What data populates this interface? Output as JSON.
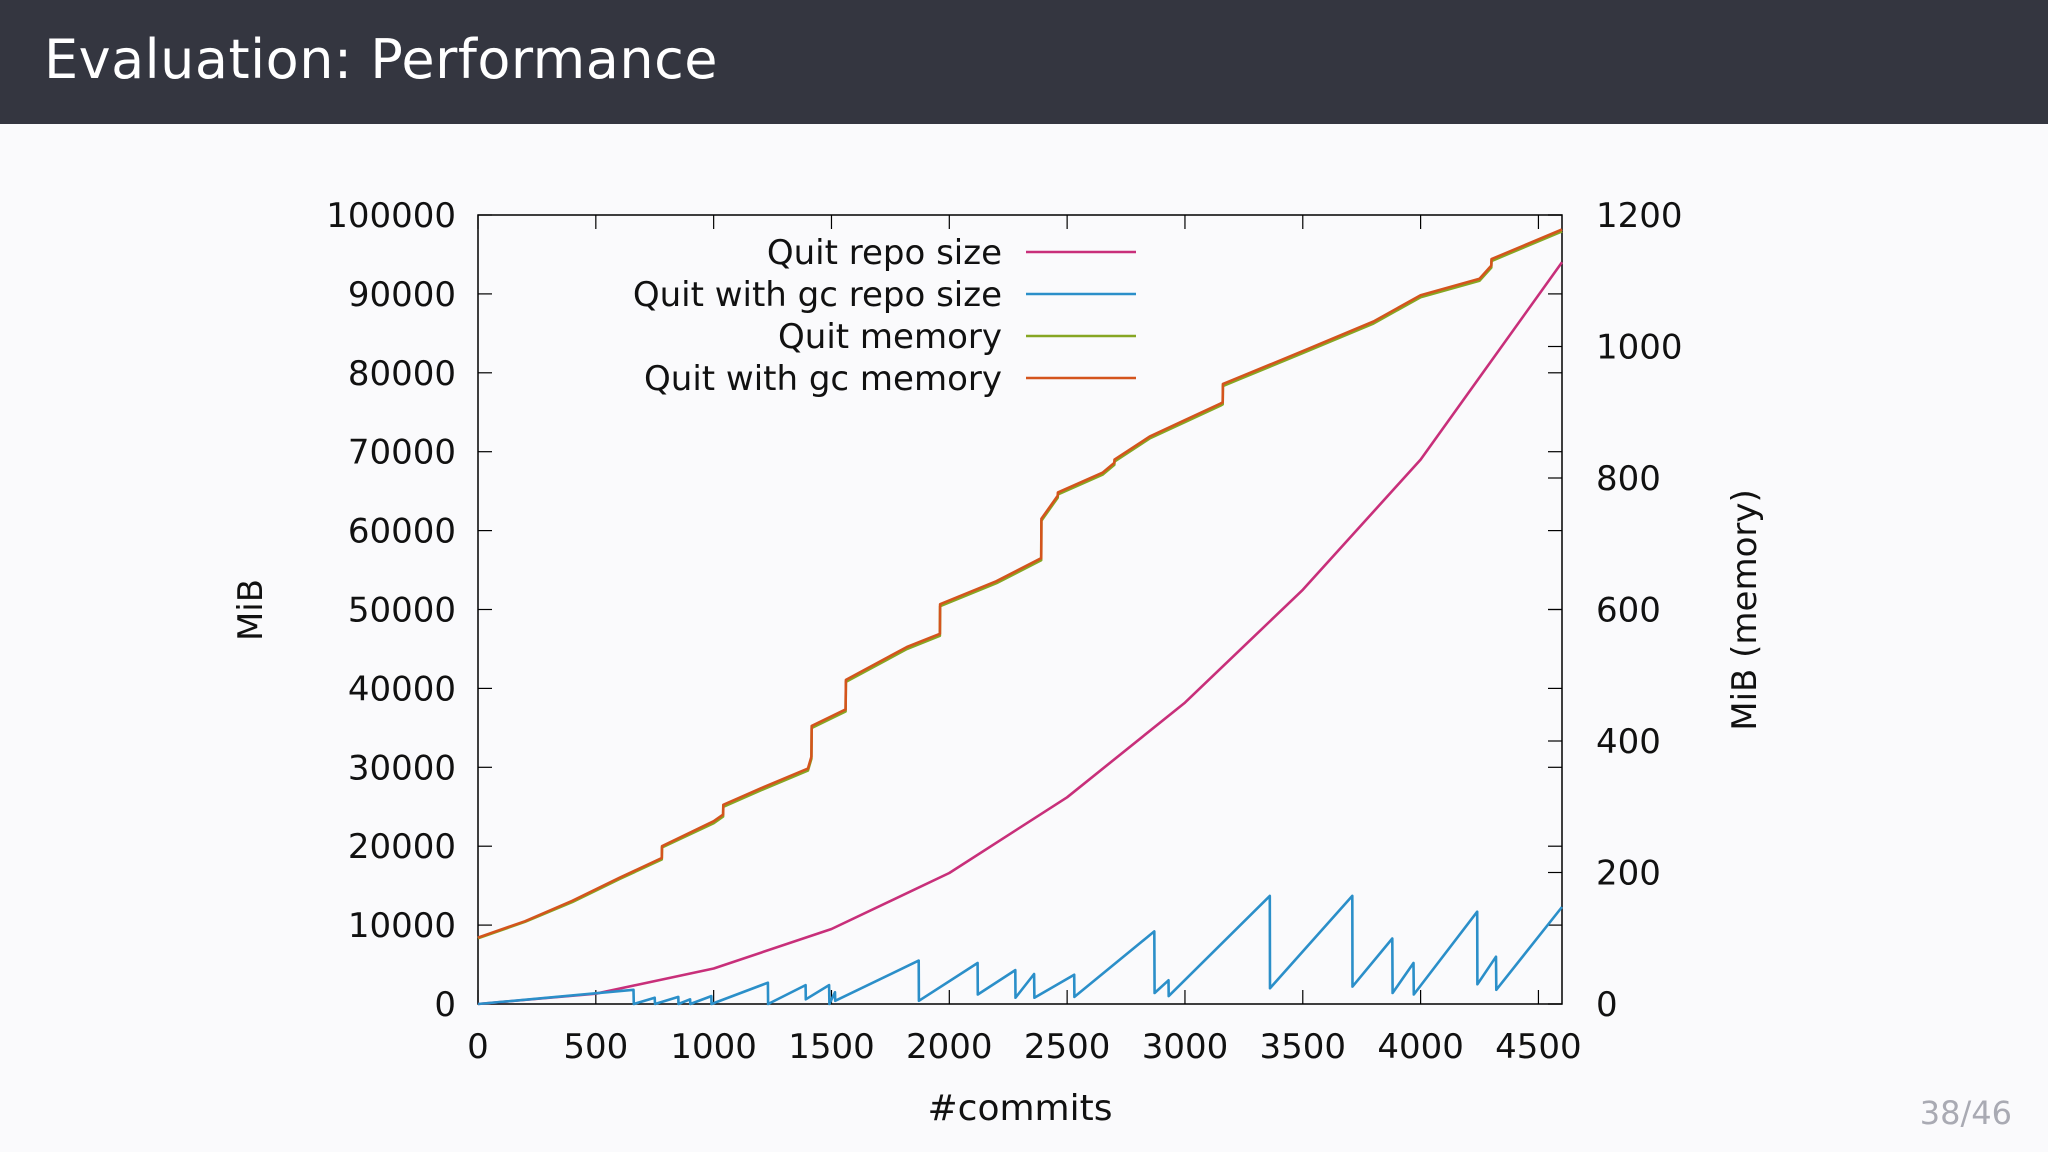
{
  "slide": {
    "title": "Evaluation: Performance",
    "page_current": "38",
    "page_sep": "/",
    "page_total": "46"
  },
  "colors": {
    "header_bg": "#343640",
    "quit_repo_size": "#c82f7a",
    "quit_gc_repo_size": "#2b8fc9",
    "quit_memory": "#86a623",
    "quit_gc_memory": "#d4541d"
  },
  "chart_data": {
    "type": "line",
    "xlabel": "#commits",
    "ylabel": "MiB",
    "y2label": "MiB (memory)",
    "xlim": [
      0,
      4600
    ],
    "ylim": [
      0,
      100000
    ],
    "y2lim": [
      0,
      1200
    ],
    "xticks": [
      0,
      500,
      1000,
      1500,
      2000,
      2500,
      3000,
      3500,
      4000,
      4500
    ],
    "yticks": [
      0,
      10000,
      20000,
      30000,
      40000,
      50000,
      60000,
      70000,
      80000,
      90000,
      100000
    ],
    "y2ticks": [
      0,
      200,
      400,
      600,
      800,
      1000,
      1200
    ],
    "grid": false,
    "legend_position": "top-right-inside",
    "series": [
      {
        "name": "Quit repo size",
        "axis": "y",
        "color": "#c82f7a",
        "x": [
          0,
          500,
          1000,
          1500,
          2000,
          2500,
          3000,
          3500,
          4000,
          4600
        ],
        "y": [
          0,
          1300,
          4500,
          9500,
          16600,
          26200,
          38200,
          52500,
          69000,
          94000
        ]
      },
      {
        "name": "Quit with gc repo size",
        "axis": "y",
        "color": "#2b8fc9",
        "x": [
          0,
          660,
          661,
          750,
          751,
          850,
          851,
          900,
          901,
          990,
          991,
          1230,
          1231,
          1390,
          1391,
          1490,
          1491,
          1515,
          1516,
          1870,
          1871,
          2120,
          2121,
          2280,
          2281,
          2360,
          2361,
          2530,
          2531,
          2870,
          2871,
          2930,
          2931,
          3360,
          3361,
          3710,
          3711,
          3880,
          3881,
          3970,
          3971,
          4240,
          4241,
          4320,
          4321,
          4600
        ],
        "y": [
          0,
          1800,
          0,
          800,
          0,
          900,
          0,
          600,
          0,
          1000,
          0,
          2700,
          0,
          2400,
          600,
          2400,
          0,
          1500,
          400,
          5500,
          400,
          5200,
          1200,
          4300,
          800,
          3800,
          800,
          3700,
          900,
          9200,
          1400,
          3000,
          1000,
          13700,
          2000,
          13700,
          2200,
          8300,
          1400,
          5200,
          1200,
          11700,
          2500,
          6000,
          1800,
          12300
        ]
      },
      {
        "name": "Quit memory",
        "axis": "y2",
        "color": "#86a623",
        "x": [
          0,
          200,
          400,
          600,
          780,
          781,
          1000,
          1040,
          1041,
          1200,
          1400,
          1415,
          1416,
          1560,
          1561,
          1820,
          1960,
          1961,
          2200,
          2390,
          2391,
          2460,
          2461,
          2650,
          2700,
          2701,
          2850,
          3000,
          3150,
          3160,
          3161,
          3500,
          3800,
          4000,
          4250,
          4300,
          4301,
          4600
        ],
        "y": [
          100,
          125,
          155,
          190,
          220,
          238,
          275,
          285,
          300,
          325,
          355,
          373,
          420,
          445,
          490,
          540,
          560,
          605,
          640,
          675,
          735,
          770,
          775,
          805,
          820,
          825,
          860,
          885,
          910,
          912,
          940,
          990,
          1035,
          1075,
          1100,
          1120,
          1130,
          1175
        ]
      },
      {
        "name": "Quit with gc memory",
        "axis": "y2",
        "color": "#d4541d",
        "x": [
          0,
          200,
          400,
          600,
          780,
          781,
          1000,
          1040,
          1041,
          1200,
          1400,
          1415,
          1416,
          1560,
          1561,
          1820,
          1960,
          1961,
          2200,
          2390,
          2391,
          2460,
          2461,
          2650,
          2700,
          2701,
          2850,
          3000,
          3150,
          3160,
          3161,
          3500,
          3800,
          4000,
          4250,
          4300,
          4301,
          4600
        ],
        "y": [
          101,
          126,
          157,
          192,
          222,
          240,
          278,
          288,
          303,
          328,
          358,
          376,
          423,
          448,
          493,
          543,
          563,
          608,
          643,
          678,
          738,
          773,
          778,
          808,
          823,
          828,
          863,
          888,
          913,
          915,
          943,
          993,
          1038,
          1078,
          1103,
          1123,
          1133,
          1178
        ]
      }
    ]
  }
}
